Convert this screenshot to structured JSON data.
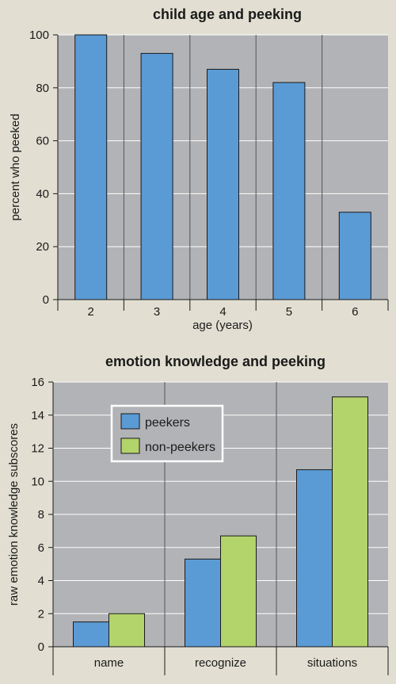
{
  "colors": {
    "background": "#e2dfd2",
    "plot_area": "#b2b3b6",
    "peekers": "#5b9bd5",
    "non_peekers": "#b3d36b",
    "gridline": "#ffffff",
    "divider": "#555555"
  },
  "chart_data": [
    {
      "type": "bar",
      "title": "child age and peeking",
      "xlabel": "age (years)",
      "ylabel": "percent who peeked",
      "categories": [
        "2",
        "3",
        "4",
        "5",
        "6"
      ],
      "values": [
        100,
        93,
        87,
        82,
        33
      ],
      "ylim": [
        0,
        100
      ],
      "yticks": [
        0,
        20,
        40,
        60,
        80,
        100
      ],
      "grid": true
    },
    {
      "type": "bar",
      "title": "emotion knowledge and peeking",
      "xlabel": "",
      "ylabel": "raw emotion knowledge subscores",
      "categories": [
        "name",
        "recognize",
        "situations"
      ],
      "series": [
        {
          "name": "peekers",
          "values": [
            1.5,
            5.3,
            10.7
          ]
        },
        {
          "name": "non-peekers",
          "values": [
            2.0,
            6.7,
            15.1
          ]
        }
      ],
      "ylim": [
        0,
        16
      ],
      "yticks": [
        0,
        2,
        4,
        6,
        8,
        10,
        12,
        14,
        16
      ],
      "grid": true,
      "legend": "top-left"
    }
  ]
}
